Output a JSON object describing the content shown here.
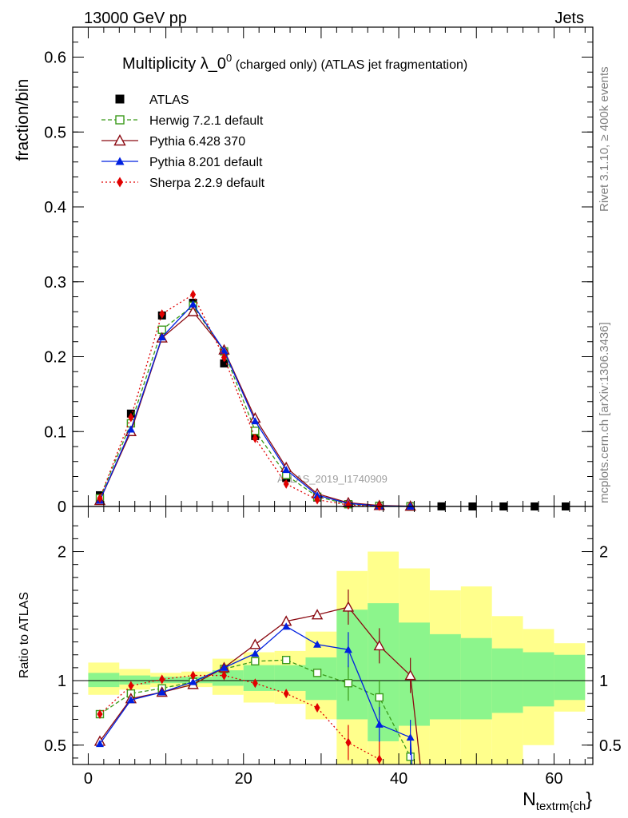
{
  "header": {
    "left": "13000 GeV pp",
    "right": "Jets"
  },
  "side_texts": {
    "rivet": "Rivet 3.1.10, ≥ 400k events",
    "mcplots": "mcplots.cern.ch [arXiv:1306.3436]"
  },
  "watermark": "ATLAS_2019_I1740909",
  "chart_data": [
    {
      "type": "line",
      "panel": "main",
      "title_parts": [
        "Multiplicity λ_0",
        "0",
        " (charged only) (ATLAS jet fragmentation)"
      ],
      "ylabel": "fraction/bin",
      "ylim": [
        0,
        0.64
      ],
      "xlim": [
        -2,
        65
      ],
      "y_ticks": [
        "0",
        "0.1",
        "0.2",
        "0.3",
        "0.4",
        "0.5",
        "0.6"
      ],
      "legend_position": "top-left",
      "series": [
        {
          "name": "ATLAS",
          "color": "#000000",
          "marker": "filled-square",
          "dash": "none",
          "x": [
            1.5,
            5.5,
            9.5,
            13.5,
            17.5,
            21.5,
            25.5,
            29.5,
            33.5,
            37.5,
            41.5,
            45.5,
            49.5,
            53.5,
            57.5,
            61.5
          ],
          "y": [
            0.015,
            0.124,
            0.255,
            0.272,
            0.191,
            0.094,
            0.038,
            0.012,
            0.003,
            0.001,
            0.0004,
            0.0001,
            0.0,
            0.0,
            0.0,
            0.0
          ]
        },
        {
          "name": "Herwig 7.2.1 default",
          "color": "#3a9a1a",
          "marker": "open-square",
          "dash": "dashed",
          "x": [
            1.5,
            5.5,
            9.5,
            13.5,
            17.5,
            21.5,
            25.5,
            29.5,
            33.5,
            37.5,
            41.5
          ],
          "y": [
            0.011,
            0.111,
            0.236,
            0.268,
            0.207,
            0.101,
            0.042,
            0.013,
            0.003,
            0.0008,
            0.0
          ]
        },
        {
          "name": "Pythia 6.428 370",
          "color": "#8b0a12",
          "marker": "open-triangle",
          "dash": "none",
          "x": [
            1.5,
            5.5,
            9.5,
            13.5,
            17.5,
            21.5,
            25.5,
            29.5,
            33.5,
            37.5,
            41.5
          ],
          "y": [
            0.008,
            0.1,
            0.225,
            0.26,
            0.209,
            0.118,
            0.052,
            0.017,
            0.005,
            0.0013,
            0.0004
          ]
        },
        {
          "name": "Pythia 8.201 default",
          "color": "#0020e0",
          "marker": "filled-triangle",
          "dash": "none",
          "x": [
            1.5,
            5.5,
            9.5,
            13.5,
            17.5,
            21.5,
            25.5,
            29.5,
            33.5,
            37.5,
            41.5
          ],
          "y": [
            0.008,
            0.103,
            0.226,
            0.27,
            0.208,
            0.114,
            0.049,
            0.015,
            0.004,
            0.0007,
            0.0002
          ]
        },
        {
          "name": "Sherpa 2.2.9 default",
          "color": "#e00000",
          "marker": "diamond",
          "dash": "dotted",
          "x": [
            1.5,
            5.5,
            9.5,
            13.5,
            17.5,
            21.5,
            25.5,
            29.5,
            33.5,
            37.5
          ],
          "y": [
            0.011,
            0.119,
            0.257,
            0.283,
            0.199,
            0.091,
            0.03,
            0.009,
            0.002,
            0.0004
          ]
        }
      ]
    },
    {
      "type": "line",
      "panel": "ratio",
      "ylabel": "Ratio to ATLAS",
      "xlabel_main": "N",
      "xlabel_sub": "textrm{ch",
      "xlabel_end": "}",
      "ylim": [
        0.35,
        2.35
      ],
      "xlim": [
        -2,
        65
      ],
      "y_ticks": [
        "0.5",
        "1",
        "2"
      ],
      "x_ticks": [
        "0",
        "20",
        "40",
        "60"
      ],
      "band_edges": [
        0,
        4,
        8,
        12,
        16,
        20,
        24,
        28,
        32,
        36,
        40,
        44,
        48,
        52,
        56,
        60,
        64
      ],
      "band_inner": [
        [
          0.95,
          1.06
        ],
        [
          0.97,
          1.04
        ],
        [
          0.98,
          1.03
        ],
        [
          0.98,
          1.03
        ],
        [
          0.96,
          1.08
        ],
        [
          0.92,
          1.12
        ],
        [
          0.92,
          1.12
        ],
        [
          0.85,
          1.18
        ],
        [
          0.7,
          1.55
        ],
        [
          0.53,
          1.6
        ],
        [
          0.65,
          1.45
        ],
        [
          0.7,
          1.36
        ],
        [
          0.7,
          1.33
        ],
        [
          0.75,
          1.25
        ],
        [
          0.8,
          1.22
        ],
        [
          0.85,
          1.2
        ]
      ],
      "band_outer": [
        [
          0.89,
          1.14
        ],
        [
          0.93,
          1.09
        ],
        [
          0.95,
          1.06
        ],
        [
          0.95,
          1.07
        ],
        [
          0.89,
          1.17
        ],
        [
          0.83,
          1.22
        ],
        [
          0.82,
          1.23
        ],
        [
          0.7,
          1.38
        ],
        [
          0.35,
          1.85
        ],
        [
          0.35,
          2.0
        ],
        [
          0.35,
          1.87
        ],
        [
          0.35,
          1.7
        ],
        [
          0.35,
          1.73
        ],
        [
          0.35,
          1.5
        ],
        [
          0.5,
          1.4
        ],
        [
          0.76,
          1.29
        ]
      ],
      "series": [
        {
          "name": "Herwig 7.2.1 default",
          "color": "#3a9a1a",
          "marker": "open-square",
          "dash": "dashed",
          "x": [
            1.5,
            5.5,
            9.5,
            13.5,
            17.5,
            21.5,
            25.5,
            29.5,
            33.5,
            37.5,
            41.5
          ],
          "y": [
            0.74,
            0.9,
            0.94,
            0.99,
            1.09,
            1.15,
            1.16,
            1.06,
            0.98,
            0.87,
            0.41
          ]
        },
        {
          "name": "Pythia 6.428 370",
          "color": "#8b0a12",
          "marker": "open-triangle",
          "dash": "none",
          "x": [
            1.5,
            5.5,
            9.5,
            13.5,
            17.5,
            21.5,
            25.5,
            29.5,
            33.5,
            37.5,
            41.5
          ],
          "y": [
            0.53,
            0.86,
            0.91,
            0.97,
            1.1,
            1.28,
            1.46,
            1.51,
            1.57,
            1.27,
            1.04
          ]
        },
        {
          "name": "Pythia 8.201 default",
          "color": "#0020e0",
          "marker": "filled-triangle",
          "dash": "none",
          "x": [
            1.5,
            5.5,
            9.5,
            13.5,
            17.5,
            21.5,
            25.5,
            29.5,
            33.5,
            37.5,
            41.5
          ],
          "y": [
            0.51,
            0.85,
            0.91,
            0.99,
            1.1,
            1.21,
            1.42,
            1.28,
            1.24,
            0.66,
            0.56
          ]
        },
        {
          "name": "Sherpa 2.2.9 default",
          "color": "#e00000",
          "marker": "diamond",
          "dash": "dotted",
          "x": [
            1.5,
            5.5,
            9.5,
            13.5,
            17.5,
            21.5,
            25.5,
            29.5,
            33.5,
            37.5
          ],
          "y": [
            0.74,
            0.96,
            1.01,
            1.04,
            1.04,
            0.98,
            0.9,
            0.79,
            0.52,
            0.39
          ]
        }
      ]
    }
  ]
}
